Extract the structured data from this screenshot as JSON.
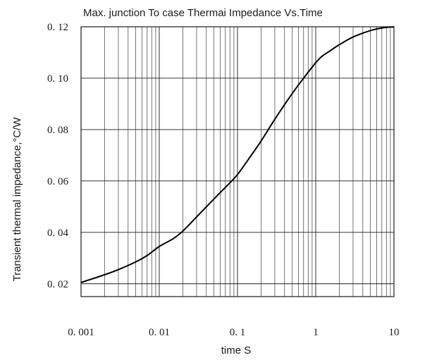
{
  "chart_data": {
    "type": "line",
    "title": "Max. junction To case Thermai  Impedance  Vs.Time",
    "xlabel": "time   S",
    "ylabel": "Transient thermal impedance,°C/W",
    "x_scale": "log",
    "xlim": [
      0.001,
      10
    ],
    "ylim": [
      0.015,
      0.12
    ],
    "grid": true,
    "x_ticks": [
      0.001,
      0.01,
      0.1,
      1,
      10
    ],
    "x_tick_labels": [
      "0. 001",
      "0. 01",
      "0. 1",
      "1",
      "10"
    ],
    "y_ticks": [
      0.02,
      0.04,
      0.06,
      0.08,
      0.1,
      0.12
    ],
    "y_tick_labels": [
      "0. 02",
      "0. 04",
      "0. 06",
      "0. 08",
      "0. 10",
      "0. 12"
    ],
    "series": [
      {
        "x": [
          0.001,
          0.002,
          0.003,
          0.005,
          0.007,
          0.01,
          0.015,
          0.02,
          0.03,
          0.05,
          0.07,
          0.1,
          0.15,
          0.2,
          0.3,
          0.5,
          0.7,
          1,
          1.2,
          1.5,
          2,
          3,
          5,
          7,
          10
        ],
        "y": [
          0.0205,
          0.0235,
          0.0255,
          0.0285,
          0.031,
          0.0345,
          0.0375,
          0.0405,
          0.046,
          0.053,
          0.0575,
          0.0625,
          0.07,
          0.0755,
          0.084,
          0.094,
          0.1,
          0.106,
          0.1085,
          0.1105,
          0.113,
          0.116,
          0.1185,
          0.1195,
          0.12
        ]
      }
    ]
  }
}
